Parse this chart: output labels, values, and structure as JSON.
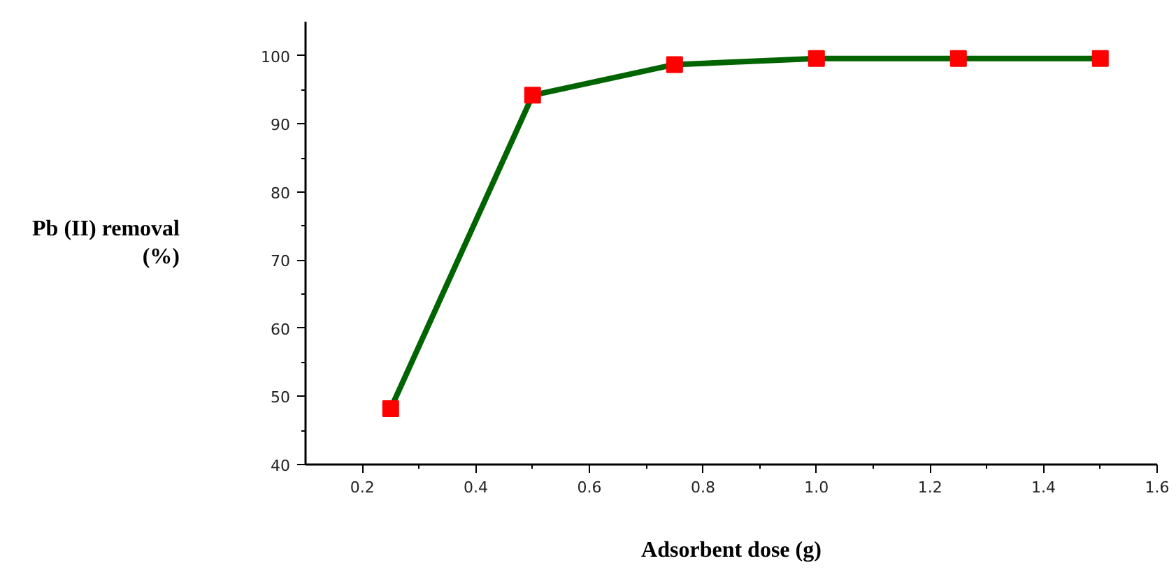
{
  "chart_data": {
    "type": "line",
    "xlabel": "Adsorbent dose (g)",
    "ylabel": "Pb (II) removal\n(%)",
    "x": [
      0.25,
      0.5,
      0.75,
      1.0,
      1.25,
      1.5
    ],
    "series": [
      {
        "color": "#006400",
        "colors": [
          "#ff0000",
          "#ff0000",
          "#ff0000",
          "#ff0000",
          "#ff0000",
          "#ff0000"
        ],
        "values": [
          48.2,
          94.2,
          98.7,
          99.6,
          99.6,
          99.6
        ]
      }
    ],
    "marker": "square",
    "line_style": "solid",
    "grid": false,
    "xlim": [
      0.1,
      1.6
    ],
    "xticks": [
      {
        "value": 0.2,
        "label": "0.2"
      },
      {
        "value": 0.4,
        "label": "0.4"
      },
      {
        "value": 0.6,
        "label": "0.6"
      },
      {
        "value": 0.8,
        "label": "0.8"
      },
      {
        "value": 1.0,
        "label": "1.0"
      },
      {
        "value": 1.2,
        "label": "1.2"
      },
      {
        "value": 1.4,
        "label": "1.4"
      },
      {
        "value": 1.6,
        "label": "1.6"
      }
    ],
    "ylim": [
      40,
      105
    ],
    "yticks": [
      40,
      50,
      60,
      70,
      80,
      90,
      100
    ]
  }
}
